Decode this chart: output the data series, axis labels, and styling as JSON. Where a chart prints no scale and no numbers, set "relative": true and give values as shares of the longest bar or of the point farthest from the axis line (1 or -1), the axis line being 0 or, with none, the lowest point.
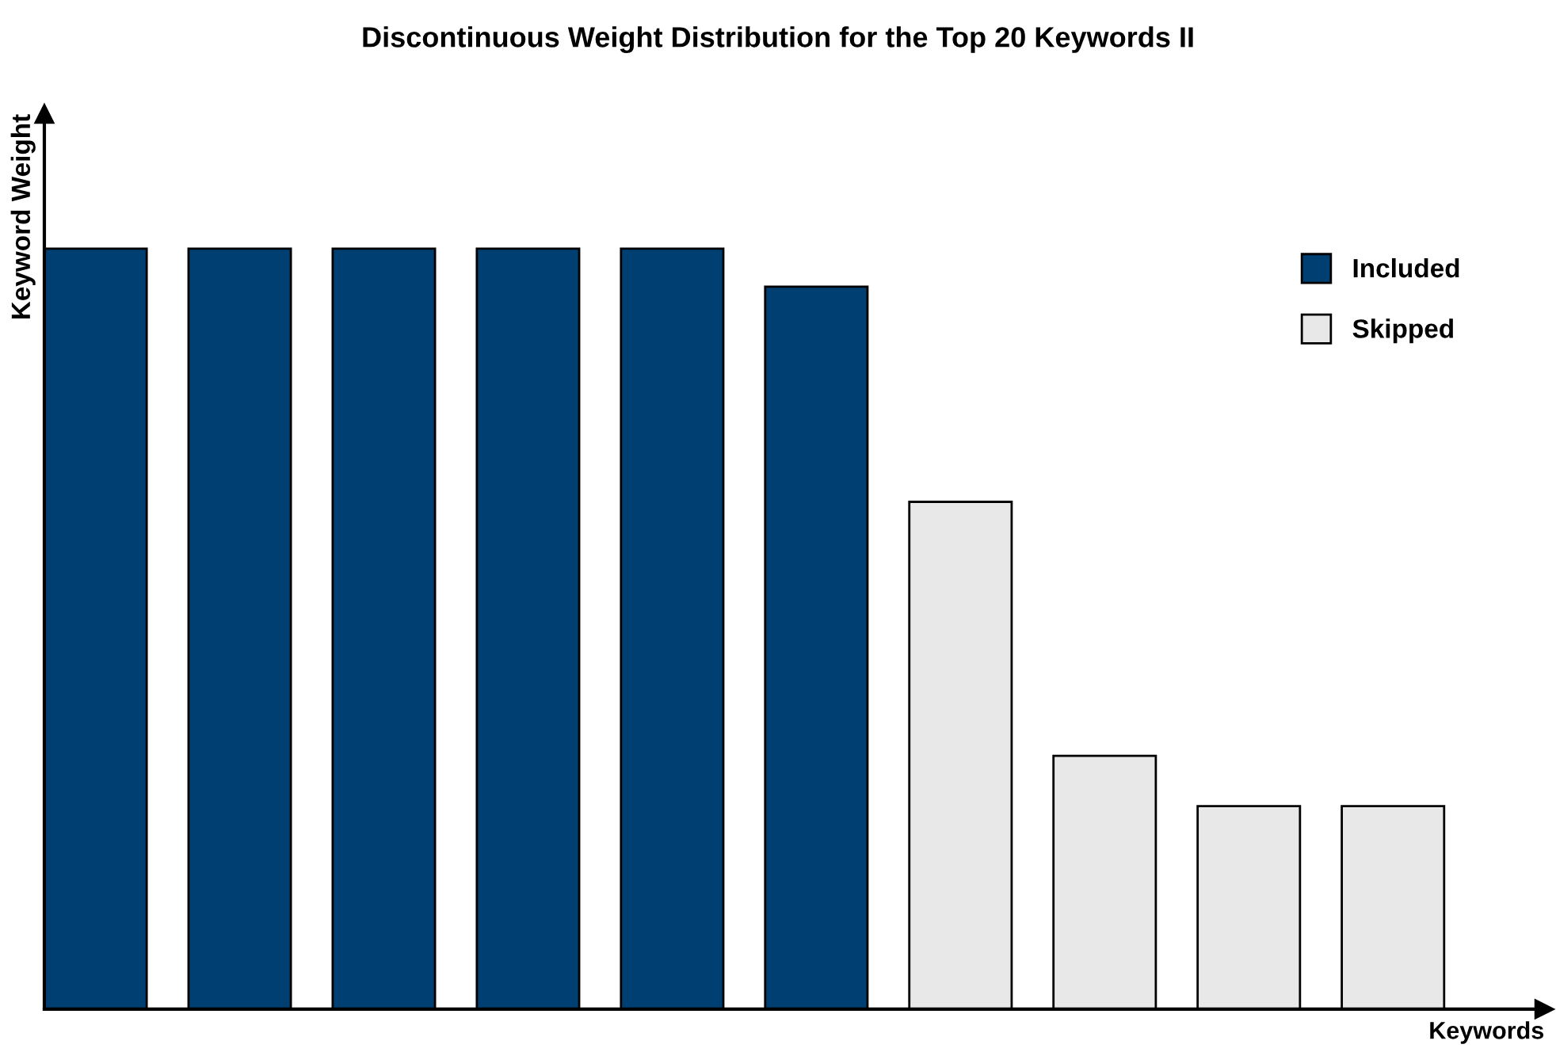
{
  "chart_data": {
    "type": "bar",
    "title": "Discontinuous Weight Distribution for the Top 20 Keywords II",
    "xlabel": "Keywords",
    "ylabel": "Keyword Weight",
    "relative": true,
    "categories": [
      null,
      null,
      null,
      null,
      null,
      null,
      null,
      null,
      null,
      null
    ],
    "series": [
      {
        "name": "Included",
        "color": "#003f72",
        "values": [
          1,
          1,
          1,
          1,
          1,
          0.95,
          0,
          0,
          0,
          0
        ]
      },
      {
        "name": "Skipped",
        "color": "#e8e8e8",
        "values": [
          0,
          0,
          0,
          0,
          0,
          0,
          0.667,
          0.333,
          0.267,
          0.267
        ]
      }
    ],
    "stacked": true,
    "legend": "top right",
    "grid": false
  }
}
